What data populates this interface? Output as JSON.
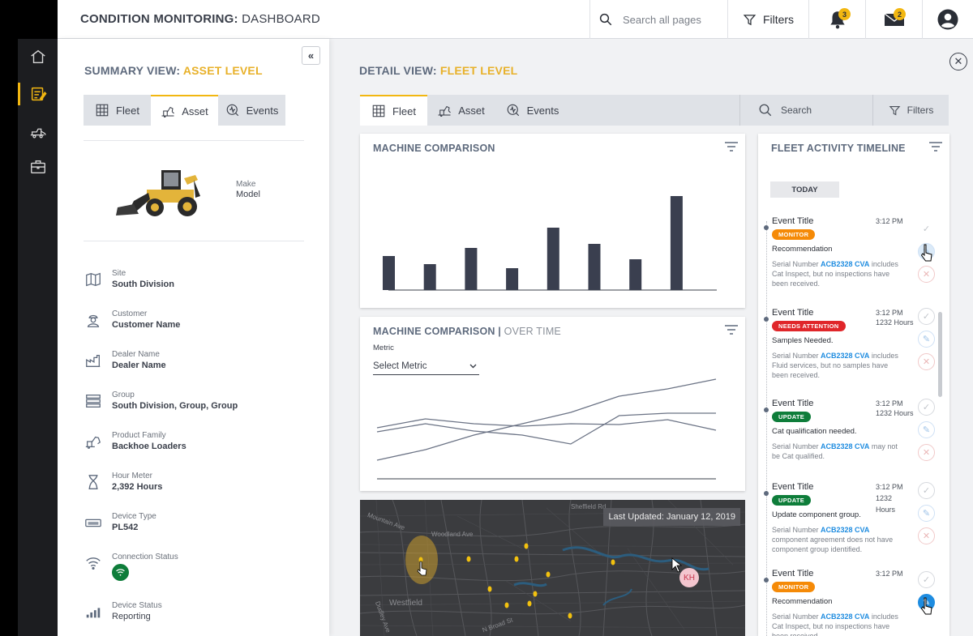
{
  "app": {
    "title_bold": "CONDITION MONITORING:",
    "title_rest": " DASHBOARD"
  },
  "header": {
    "search_placeholder": "Search all pages",
    "filters_label": "Filters",
    "notifications_count": "3",
    "messages_count": "2"
  },
  "rail": [
    "home-icon",
    "edit-note-icon",
    "machine-icon",
    "briefcase-icon"
  ],
  "summary": {
    "title_prefix": "SUMMARY VIEW: ",
    "title_highlight": "ASSET LEVEL",
    "tabs": [
      {
        "label": "Fleet"
      },
      {
        "label": "Asset"
      },
      {
        "label": "Events"
      }
    ],
    "make_label": "Make",
    "model_label": "Model",
    "attributes": [
      {
        "label": "Site",
        "value": "South Division"
      },
      {
        "label": "Customer",
        "value": "Customer Name"
      },
      {
        "label": "Dealer Name",
        "value": "Dealer Name"
      },
      {
        "label": "Group",
        "value": "South Division, Group, Group"
      },
      {
        "label": "Product Family",
        "value": "Backhoe Loaders"
      },
      {
        "label": "Hour Meter",
        "value": "2,392 Hours"
      },
      {
        "label": "Device Type",
        "value": "PL542"
      },
      {
        "label": "Connection Status",
        "value": ""
      },
      {
        "label": "Device Status",
        "value": "Reporting"
      }
    ]
  },
  "detail": {
    "title_prefix": "DETAIL VIEW: ",
    "title_highlight": "FLEET LEVEL",
    "tabs": [
      {
        "label": "Fleet"
      },
      {
        "label": "Asset"
      },
      {
        "label": "Events"
      }
    ],
    "search_label": "Search",
    "filters_label": "Filters"
  },
  "machine_comparison": {
    "title": "MACHINE COMPARISON",
    "chart_data": {
      "type": "bar",
      "values": [
        42,
        32,
        52,
        27,
        77,
        57,
        38,
        116
      ]
    }
  },
  "over_time": {
    "title": "MACHINE COMPARISON",
    "subtitle": "OVER TIME",
    "metric_label": "Metric",
    "metric_value": "Select Metric",
    "chart_data": {
      "type": "line",
      "series": [
        {
          "values": [
            15,
            28,
            46,
            60,
            74,
            94,
            103,
            115
          ]
        },
        {
          "values": [
            50,
            60,
            51,
            46,
            35,
            70,
            73,
            73
          ]
        },
        {
          "values": [
            55,
            66,
            60,
            57,
            60,
            59,
            65,
            52
          ]
        }
      ]
    }
  },
  "map": {
    "last_updated": "Last Updated: January 12, 2019",
    "user_initials": "KH",
    "labels": [
      "Mountain Ave",
      "Woodland Ave",
      "Westfield",
      "Sheffield Rd",
      "N Broad St",
      "Dudley Ave"
    ]
  },
  "timeline": {
    "title": "FLEET ACTIVITY TIMELINE",
    "today_label": "TODAY",
    "events": [
      {
        "title": "Event Title",
        "time": "3:12 PM",
        "hours": "",
        "badge": "MONITOR",
        "badge_color": "#f58a07",
        "recommendation": "Recommendation",
        "desc_pre": "Serial Number ",
        "serial": "ACB2328 CVA",
        "desc_post": " includes Cat Inspect, but no inspections have been received."
      },
      {
        "title": "Event Title",
        "time": "3:12 PM",
        "hours": "1232 Hours",
        "badge": "NEEDS ATTENTION",
        "badge_color": "#e0262a",
        "recommendation": "Samples Needed.",
        "desc_pre": "Serial Number ",
        "serial": "ACB2328 CVA",
        "desc_post": " includes Fluid services, but no samples have been received."
      },
      {
        "title": "Event Title",
        "time": "3:12 PM",
        "hours": "1232 Hours",
        "badge": "UPDATE",
        "badge_color": "#0e7d3a",
        "recommendation": "Cat qualification needed.",
        "desc_pre": "Serial Number ",
        "serial": "ACB2328 CVA",
        "desc_post": " may not be Cat qualified."
      },
      {
        "title": "Event Title",
        "time": "3:12 PM",
        "hours": "1232 Hours",
        "badge": "UPDATE",
        "badge_color": "#0e7d3a",
        "recommendation": "Update component group.",
        "desc_pre": "Serial Number ",
        "serial": "ACB2328 CVA",
        "desc_post": " component agreement does not have component group identified."
      },
      {
        "title": "Event Title",
        "time": "3:12 PM",
        "hours": "",
        "badge": "MONITOR",
        "badge_color": "#f58a07",
        "recommendation": "Recommendation",
        "desc_pre": "Serial Number ",
        "serial": "ACB2328 CVA",
        "desc_post": " includes Cat Inspect, but no inspections have been received."
      }
    ]
  }
}
